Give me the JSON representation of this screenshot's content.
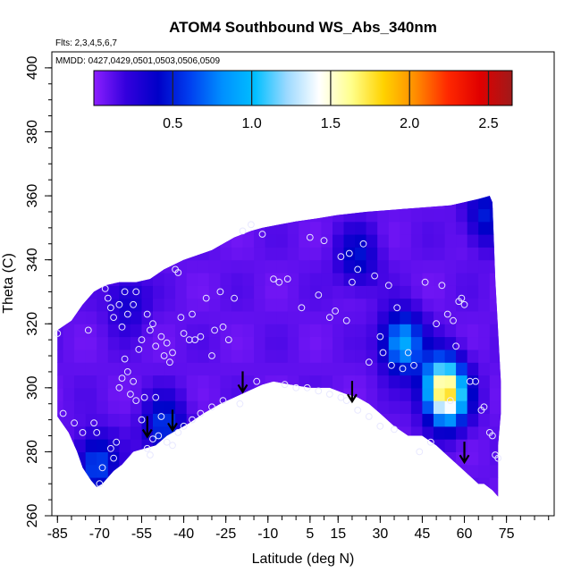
{
  "chart_data": {
    "type": "heatmap",
    "title": "ATOM4 Southbound WS_Abs_340nm",
    "xlabel": "Latitude (deg N)",
    "ylabel": "Theta (C)",
    "annotations": [
      "Flts: 2,3,4,5,6,7",
      "MMDD: 0427,0429,0501,0503,0506,0509"
    ],
    "xlim": [
      -87,
      92
    ],
    "ylim": [
      260,
      405
    ],
    "xticks": [
      -85,
      -70,
      -55,
      -40,
      -25,
      -10,
      5,
      15,
      30,
      45,
      60,
      75
    ],
    "yticks": [
      260,
      280,
      300,
      320,
      340,
      360,
      380,
      400
    ],
    "colorbar": {
      "range": [
        0,
        2.65
      ],
      "ticks": [
        0.5,
        1.0,
        1.5,
        2.0,
        2.5
      ],
      "tick_labels": [
        "0.5",
        "1.0",
        "1.5",
        "2.0",
        "2.5"
      ],
      "colors": [
        "#8c1fff",
        "#3300dd",
        "#0000c8",
        "#0040f0",
        "#0090ff",
        "#00bfff",
        "#9cd9ff",
        "#ffffff",
        "#ffff8c",
        "#ffd200",
        "#ff8c00",
        "#ff2800",
        "#e00000",
        "#a01a1a"
      ]
    },
    "background_value": 0.1,
    "hotspots": [
      {
        "lat": 54,
        "theta": 297,
        "value": 1.25
      },
      {
        "lat": 52,
        "theta": 302,
        "value": 0.9
      },
      {
        "lat": 38,
        "theta": 314,
        "value": 0.95
      },
      {
        "lat": -71,
        "theta": 276,
        "value": 0.65
      },
      {
        "lat": -47,
        "theta": 288,
        "value": 0.6
      },
      {
        "lat": 68,
        "theta": 354,
        "value": 0.5
      },
      {
        "lat": 22,
        "theta": 341,
        "value": 0.45
      },
      {
        "lat": -60,
        "theta": 327,
        "value": 0.35
      }
    ],
    "points": [
      [
        -85,
        317
      ],
      [
        -83,
        292
      ],
      [
        -79,
        289
      ],
      [
        -76,
        286
      ],
      [
        -72,
        289
      ],
      [
        -71,
        286
      ],
      [
        -74,
        318
      ],
      [
        -68,
        331
      ],
      [
        -67,
        328
      ],
      [
        -66,
        325
      ],
      [
        -65,
        322
      ],
      [
        -63,
        326
      ],
      [
        -62,
        319
      ],
      [
        -61,
        330
      ],
      [
        -60,
        323
      ],
      [
        -58,
        326
      ],
      [
        -57,
        330
      ],
      [
        -56,
        312
      ],
      [
        -55,
        315
      ],
      [
        -53,
        323
      ],
      [
        -52,
        318
      ],
      [
        -51,
        320
      ],
      [
        -50,
        313
      ],
      [
        -48,
        316
      ],
      [
        -47,
        310
      ],
      [
        -46,
        314
      ],
      [
        -45,
        308
      ],
      [
        -44,
        311
      ],
      [
        -43,
        337
      ],
      [
        -42,
        336
      ],
      [
        -41,
        322
      ],
      [
        -40,
        317
      ],
      [
        -38,
        315
      ],
      [
        -37,
        323
      ],
      [
        -36,
        315
      ],
      [
        -34,
        316
      ],
      [
        -32,
        328
      ],
      [
        -30,
        310
      ],
      [
        -29,
        318
      ],
      [
        -27,
        330
      ],
      [
        -26,
        319
      ],
      [
        -24,
        315
      ],
      [
        -22,
        328
      ],
      [
        -20,
        295
      ],
      [
        -19,
        349
      ],
      [
        -16,
        351
      ],
      [
        -12,
        348
      ],
      [
        -8,
        334
      ],
      [
        -6,
        333
      ],
      [
        -3,
        334
      ],
      [
        2,
        325
      ],
      [
        5,
        347
      ],
      [
        8,
        329
      ],
      [
        10,
        346
      ],
      [
        12,
        322
      ],
      [
        14,
        324
      ],
      [
        16,
        341
      ],
      [
        18,
        321
      ],
      [
        19,
        342
      ],
      [
        20,
        333
      ],
      [
        22,
        337
      ],
      [
        24,
        345
      ],
      [
        26,
        308
      ],
      [
        28,
        335
      ],
      [
        30,
        316
      ],
      [
        31,
        311
      ],
      [
        33,
        332
      ],
      [
        34,
        307
      ],
      [
        35,
        287
      ],
      [
        36,
        325
      ],
      [
        38,
        306
      ],
      [
        40,
        311
      ],
      [
        42,
        307
      ],
      [
        44,
        280
      ],
      [
        46,
        333
      ],
      [
        48,
        283
      ],
      [
        50,
        320
      ],
      [
        52,
        332
      ],
      [
        54,
        323
      ],
      [
        55,
        296
      ],
      [
        56,
        321
      ],
      [
        57,
        313
      ],
      [
        58,
        327
      ],
      [
        59,
        328
      ],
      [
        60,
        326
      ],
      [
        62,
        302
      ],
      [
        64,
        302
      ],
      [
        66,
        293
      ],
      [
        67,
        294
      ],
      [
        69,
        286
      ],
      [
        70,
        285
      ],
      [
        71,
        279
      ],
      [
        72,
        278
      ],
      [
        -70,
        270
      ],
      [
        -69,
        275
      ],
      [
        -66,
        281
      ],
      [
        -65,
        278
      ],
      [
        -64,
        283
      ],
      [
        -63,
        300
      ],
      [
        -62,
        303
      ],
      [
        -61,
        309
      ],
      [
        -60,
        305
      ],
      [
        -59,
        298
      ],
      [
        -58,
        302
      ],
      [
        -57,
        296
      ],
      [
        -55,
        290
      ],
      [
        -54,
        297
      ],
      [
        -53,
        281
      ],
      [
        -52,
        279
      ],
      [
        -51,
        284
      ],
      [
        -50,
        297
      ],
      [
        -49,
        285
      ],
      [
        -48,
        291
      ],
      [
        -46,
        283
      ],
      [
        -44,
        282
      ],
      [
        -42,
        286
      ],
      [
        -40,
        288
      ],
      [
        -37,
        290
      ],
      [
        -34,
        292
      ],
      [
        -30,
        294
      ],
      [
        -26,
        296
      ],
      [
        -14,
        302
      ],
      [
        -4,
        301
      ],
      [
        0,
        300
      ],
      [
        4,
        300
      ],
      [
        8,
        299
      ],
      [
        12,
        298
      ],
      [
        16,
        297
      ],
      [
        18,
        296
      ],
      [
        22,
        293
      ],
      [
        26,
        291
      ],
      [
        30,
        288
      ]
    ],
    "arrows": [
      {
        "lat": -53,
        "theta": 285
      },
      {
        "lat": -44,
        "theta": 287
      },
      {
        "lat": -19,
        "theta": 299
      },
      {
        "lat": 20,
        "theta": 296
      },
      {
        "lat": 60,
        "theta": 277
      }
    ],
    "coverage": {
      "upper": [
        [
          -85,
          318
        ],
        [
          -80,
          321
        ],
        [
          -76,
          326
        ],
        [
          -72,
          330
        ],
        [
          -68,
          332
        ],
        [
          -63,
          333
        ],
        [
          -57,
          333
        ],
        [
          -52,
          334
        ],
        [
          -47,
          337
        ],
        [
          -40,
          340
        ],
        [
          -30,
          343
        ],
        [
          -22,
          347
        ],
        [
          -16,
          349
        ],
        [
          -12,
          350
        ],
        [
          -6,
          351
        ],
        [
          0,
          352
        ],
        [
          8,
          353
        ],
        [
          15,
          354
        ],
        [
          25,
          355
        ],
        [
          40,
          356
        ],
        [
          55,
          357
        ],
        [
          65,
          359
        ],
        [
          69,
          360
        ],
        [
          70,
          358
        ]
      ],
      "right": [
        [
          70,
          358
        ],
        [
          71,
          334
        ],
        [
          72,
          318
        ],
        [
          73,
          302
        ],
        [
          73,
          292
        ],
        [
          72,
          282
        ],
        [
          72,
          266
        ]
      ],
      "lower": [
        [
          72,
          266
        ],
        [
          70,
          268
        ],
        [
          67,
          270
        ],
        [
          65,
          270
        ],
        [
          60,
          274
        ],
        [
          55,
          278
        ],
        [
          50,
          282
        ],
        [
          45,
          285
        ],
        [
          40,
          285
        ],
        [
          35,
          288
        ],
        [
          30,
          292
        ],
        [
          26,
          295
        ],
        [
          22,
          297
        ],
        [
          18,
          298
        ],
        [
          12,
          300
        ],
        [
          5,
          300
        ],
        [
          -2,
          301
        ],
        [
          -8,
          302
        ],
        [
          -12,
          301
        ],
        [
          -17,
          299
        ],
        [
          -22,
          297
        ],
        [
          -27,
          295
        ],
        [
          -33,
          292
        ],
        [
          -38,
          289
        ],
        [
          -42,
          287
        ],
        [
          -46,
          285
        ],
        [
          -50,
          282
        ],
        [
          -54,
          281
        ],
        [
          -58,
          280
        ],
        [
          -62,
          276
        ],
        [
          -65,
          274
        ],
        [
          -69,
          270
        ],
        [
          -71,
          269
        ],
        [
          -73,
          271
        ],
        [
          -76,
          275
        ],
        [
          -78,
          280
        ],
        [
          -81,
          286
        ],
        [
          -85,
          291
        ]
      ]
    },
    "grid": false,
    "legend": "colorbar-top"
  }
}
